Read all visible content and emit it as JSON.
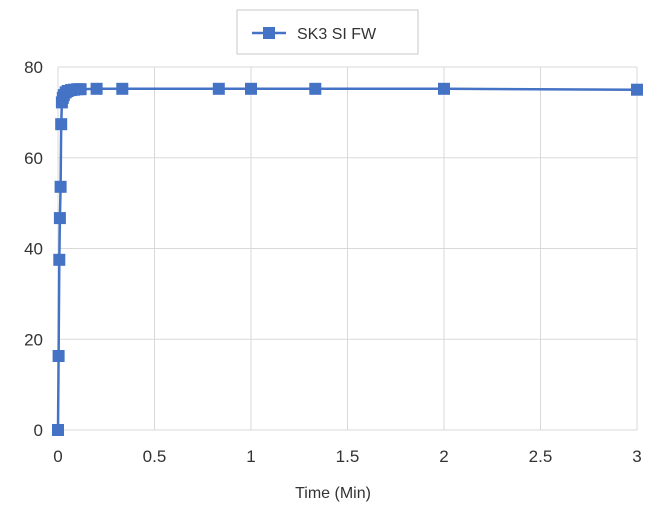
{
  "chart_data": {
    "type": "line",
    "title": "",
    "xlabel": "Time (Min)",
    "ylabel": "",
    "xlim": [
      0,
      3
    ],
    "ylim": [
      0,
      80
    ],
    "xticks": [
      "0",
      "0.5",
      "1",
      "1.5",
      "2",
      "2.5",
      "3"
    ],
    "yticks": [
      "0",
      "20",
      "40",
      "60",
      "80"
    ],
    "grid": true,
    "legend_position": "top-center",
    "series": [
      {
        "name": "SK3 SI FW",
        "color": "#4472c4",
        "marker": "square",
        "points": [
          {
            "x": 0,
            "y": 0
          },
          {
            "x": 0.0033,
            "y": 16.3
          },
          {
            "x": 0.0067,
            "y": 37.5
          },
          {
            "x": 0.01,
            "y": 46.7
          },
          {
            "x": 0.0133,
            "y": 53.6
          },
          {
            "x": 0.0167,
            "y": 67.4
          },
          {
            "x": 0.02,
            "y": 72.2
          },
          {
            "x": 0.025,
            "y": 73.2
          },
          {
            "x": 0.03,
            "y": 73.8
          },
          {
            "x": 0.04,
            "y": 74.4
          },
          {
            "x": 0.05,
            "y": 74.7
          },
          {
            "x": 0.067,
            "y": 74.9
          },
          {
            "x": 0.083,
            "y": 75.0
          },
          {
            "x": 0.1,
            "y": 75.1
          },
          {
            "x": 0.117,
            "y": 75.1
          },
          {
            "x": 0.2,
            "y": 75.2
          },
          {
            "x": 0.333,
            "y": 75.2
          },
          {
            "x": 0.833,
            "y": 75.2
          },
          {
            "x": 1.0,
            "y": 75.2
          },
          {
            "x": 1.333,
            "y": 75.2
          },
          {
            "x": 2.0,
            "y": 75.2
          },
          {
            "x": 3.0,
            "y": 75.0
          }
        ]
      }
    ]
  }
}
